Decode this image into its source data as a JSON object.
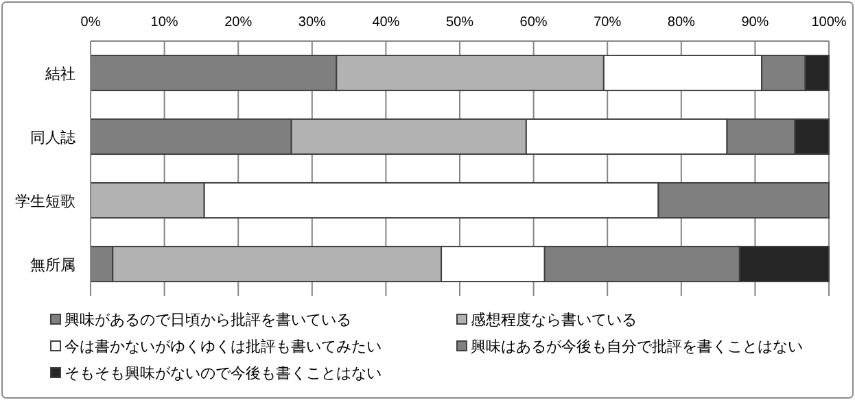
{
  "chart_data": {
    "type": "bar",
    "orientation": "horizontal",
    "stacked": true,
    "categories": [
      "結社",
      "同人誌",
      "学生短歌",
      "無所属"
    ],
    "series": [
      {
        "name": "興味があるので日頃から批評を書いている",
        "color": "#7f7f7f",
        "values": [
          33.3,
          27.2,
          0,
          3.0
        ]
      },
      {
        "name": "感想程度なら書いている",
        "color": "#b2b2b2",
        "values": [
          36.2,
          31.8,
          15.4,
          44.5
        ]
      },
      {
        "name": "今は書かないがゆくゆくは批評も書いてみたい",
        "color": "#ffffff",
        "values": [
          21.4,
          27.2,
          61.5,
          14.0
        ]
      },
      {
        "name": "興味はあるが今後も自分で批評を書くことはない",
        "color": "#7f7f7f",
        "values": [
          5.9,
          9.2,
          23.1,
          26.4
        ]
      },
      {
        "name": "そもそも興味がないので今後も書くことはない",
        "color": "#262626",
        "values": [
          3.2,
          4.6,
          0,
          12.1
        ]
      }
    ],
    "xlim": [
      0,
      100
    ],
    "xticks": [
      {
        "value": 0,
        "label": "0%"
      },
      {
        "value": 10,
        "label": "10%"
      },
      {
        "value": 20,
        "label": "20%"
      },
      {
        "value": 30,
        "label": "30%"
      },
      {
        "value": 40,
        "label": "40%"
      },
      {
        "value": 50,
        "label": "50%"
      },
      {
        "value": 60,
        "label": "60%"
      },
      {
        "value": 70,
        "label": "70%"
      },
      {
        "value": 80,
        "label": "80%"
      },
      {
        "value": 90,
        "label": "90%"
      },
      {
        "value": 100,
        "label": "100%"
      }
    ],
    "grid": "x",
    "legend": "bottom"
  }
}
